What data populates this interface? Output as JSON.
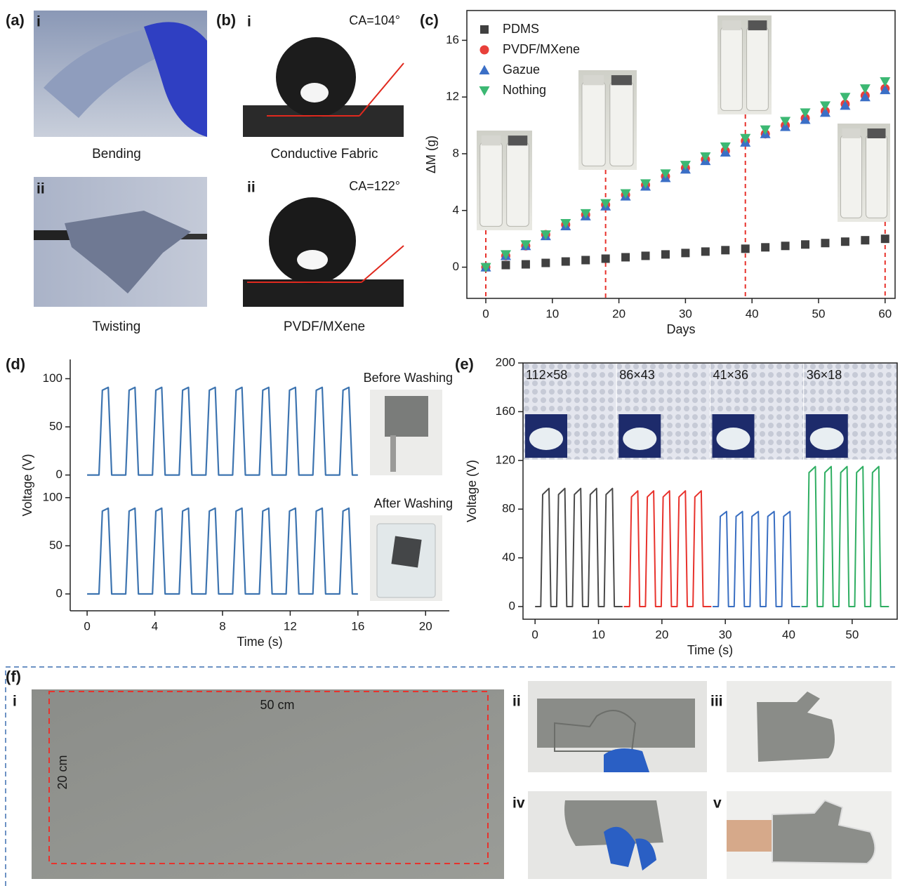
{
  "figure": {
    "a": {
      "label": "(a)",
      "sub": [
        "i",
        "ii"
      ],
      "captions": [
        "Bending",
        "Twisting"
      ]
    },
    "b": {
      "label": "(b)",
      "sub": [
        "i",
        "ii"
      ],
      "angles": [
        "CA=104°",
        "CA=122°"
      ],
      "captions": [
        "Conductive Fabric",
        "PVDF/MXene"
      ]
    },
    "c": {
      "label": "(c)"
    },
    "d": {
      "label": "(d)"
    },
    "e": {
      "label": "(e)"
    },
    "f": {
      "label": "(f)",
      "sub": [
        "i",
        "ii",
        "iii",
        "iv",
        "v"
      ],
      "width_label": "50 cm",
      "height_label": "20 cm"
    }
  },
  "chart_data": [
    {
      "type": "scatter",
      "xlabel": "Days",
      "ylabel": "ΔM (g)",
      "legend": "upper left",
      "xlim": [
        -2.85,
        61.5
      ],
      "ylim": [
        -2.2,
        18.1
      ],
      "xticks": [
        0,
        10,
        20,
        30,
        40,
        50,
        60
      ],
      "yticks": [
        0,
        4,
        8,
        12,
        16
      ],
      "x": [
        0,
        3,
        6,
        9,
        12,
        15,
        18,
        21,
        24,
        27,
        30,
        33,
        36,
        39,
        42,
        45,
        48,
        51,
        54,
        57,
        60
      ],
      "annotation_x": [
        0,
        18,
        39,
        60
      ],
      "series": [
        {
          "name": "PDMS",
          "color": "#404040",
          "marker": "square",
          "values": [
            0,
            0.15,
            0.2,
            0.3,
            0.4,
            0.5,
            0.6,
            0.7,
            0.8,
            0.9,
            1.0,
            1.1,
            1.2,
            1.3,
            1.4,
            1.5,
            1.6,
            1.7,
            1.8,
            1.9,
            2.0
          ]
        },
        {
          "name": "PVDF/MXene",
          "color": "#e8403a",
          "marker": "circle",
          "values": [
            0,
            0.8,
            1.5,
            2.3,
            3.0,
            3.7,
            4.4,
            5.1,
            5.8,
            6.4,
            7.0,
            7.6,
            8.2,
            8.9,
            9.4,
            10.0,
            10.5,
            11.0,
            11.5,
            12.1,
            12.6
          ]
        },
        {
          "name": "Gazue",
          "color": "#3b6fc6",
          "marker": "triangle-up",
          "values": [
            0,
            0.8,
            1.5,
            2.2,
            2.9,
            3.6,
            4.3,
            5.0,
            5.7,
            6.3,
            6.9,
            7.5,
            8.1,
            8.8,
            9.4,
            9.9,
            10.4,
            10.9,
            11.4,
            12.0,
            12.5
          ]
        },
        {
          "name": "Nothing",
          "color": "#3cb873",
          "marker": "triangle-down",
          "values": [
            0,
            0.9,
            1.6,
            2.3,
            3.1,
            3.8,
            4.5,
            5.2,
            5.9,
            6.6,
            7.2,
            7.8,
            8.5,
            9.1,
            9.7,
            10.3,
            10.9,
            11.4,
            12.0,
            12.6,
            13.1
          ]
        }
      ]
    },
    {
      "type": "line",
      "xlabel": "Time (s)",
      "ylabel": "Voltage (V)",
      "xlim": [
        -1,
        21.4
      ],
      "xticks": [
        0,
        4,
        8,
        12,
        16,
        20
      ],
      "x": [
        0,
        0.7,
        0.9,
        1.25,
        1.45,
        2.28,
        2.48,
        2.83,
        3.03,
        3.86,
        4.06,
        4.41,
        4.61,
        5.44,
        5.64,
        5.99,
        6.19,
        7.02,
        7.22,
        7.57,
        7.77,
        8.6,
        8.8,
        9.15,
        9.35,
        10.18,
        10.38,
        10.73,
        10.93,
        11.76,
        11.96,
        12.31,
        12.51,
        13.34,
        13.54,
        13.89,
        14.09,
        14.92,
        15.12,
        15.47,
        15.67,
        16
      ],
      "series": [
        {
          "name": "Before Washing",
          "color": "#3d74b0",
          "ylim": [
            -10.5,
            120
          ],
          "yticks": [
            0,
            50,
            100
          ],
          "values": [
            0,
            0,
            88,
            91,
            0,
            0,
            88,
            91,
            0,
            0,
            88,
            91,
            0,
            0,
            88,
            91,
            0,
            0,
            88,
            91,
            0,
            0,
            88,
            91,
            0,
            0,
            88,
            91,
            0,
            0,
            88,
            91,
            0,
            0,
            88,
            91,
            0,
            0,
            88,
            91,
            0,
            0
          ]
        },
        {
          "name": "After Washing",
          "color": "#3d74b0",
          "ylim": [
            -17.5,
            113
          ],
          "yticks": [
            0,
            50,
            100
          ],
          "values": [
            0,
            0,
            86,
            89,
            0,
            0,
            86,
            89,
            0,
            0,
            86,
            89,
            0,
            0,
            86,
            89,
            0,
            0,
            86,
            89,
            0,
            0,
            86,
            89,
            0,
            0,
            86,
            89,
            0,
            0,
            86,
            89,
            0,
            0,
            86,
            89,
            0,
            0,
            86,
            89,
            0,
            0
          ]
        }
      ]
    },
    {
      "type": "line",
      "xlabel": "Time (s)",
      "ylabel": "Voltage (V)",
      "xlim": [
        -1.9,
        57.1
      ],
      "ylim": [
        -10.4,
        200
      ],
      "xticks": [
        0,
        10,
        20,
        30,
        40,
        50
      ],
      "yticks": [
        0,
        40,
        80,
        120,
        160,
        200
      ],
      "series": [
        {
          "name": "112×58",
          "color": "#4a4a4a",
          "x": [
            0,
            0.9,
            1.2,
            2.2,
            2.5,
            3.4,
            3.7,
            4.7,
            5.0,
            5.9,
            6.2,
            7.2,
            7.5,
            8.4,
            8.7,
            9.7,
            10.0,
            10.9,
            11.2,
            12.2,
            12.5,
            13.8
          ],
          "values": [
            0,
            0,
            92,
            97,
            0,
            0,
            92,
            97,
            0,
            0,
            92,
            97,
            0,
            0,
            92,
            97,
            0,
            0,
            92,
            97,
            0,
            0
          ]
        },
        {
          "name": "86×43",
          "color": "#e8322c",
          "x": [
            14,
            14.9,
            15.2,
            16.2,
            16.5,
            17.4,
            17.7,
            18.7,
            19.0,
            19.9,
            20.2,
            21.2,
            21.5,
            22.4,
            22.7,
            23.7,
            24.0,
            24.9,
            25.2,
            26.2,
            26.5,
            27.8
          ],
          "values": [
            0,
            0,
            90,
            95,
            0,
            0,
            90,
            95,
            0,
            0,
            90,
            95,
            0,
            0,
            90,
            95,
            0,
            0,
            90,
            95,
            0,
            0
          ]
        },
        {
          "name": "41×36",
          "color": "#3a6fc2",
          "x": [
            28,
            28.9,
            29.2,
            30.2,
            30.5,
            31.4,
            31.7,
            32.7,
            33.0,
            33.9,
            34.2,
            35.2,
            35.5,
            36.4,
            36.7,
            37.7,
            38.0,
            38.9,
            39.2,
            40.2,
            40.5,
            41.8
          ],
          "values": [
            0,
            0,
            74,
            78,
            0,
            0,
            74,
            78,
            0,
            0,
            74,
            78,
            0,
            0,
            74,
            78,
            0,
            0,
            74,
            78,
            0,
            0
          ]
        },
        {
          "name": "36×18",
          "color": "#2fae62",
          "x": [
            42,
            42.9,
            43.2,
            44.2,
            44.5,
            45.4,
            45.7,
            46.7,
            47.0,
            47.9,
            48.2,
            49.2,
            49.5,
            50.4,
            50.7,
            51.7,
            52.0,
            52.9,
            53.2,
            54.2,
            54.5,
            55.8
          ],
          "values": [
            0,
            0,
            110,
            115,
            0,
            0,
            110,
            115,
            0,
            0,
            110,
            115,
            0,
            0,
            110,
            115,
            0,
            0,
            110,
            115,
            0,
            0
          ]
        }
      ]
    }
  ]
}
